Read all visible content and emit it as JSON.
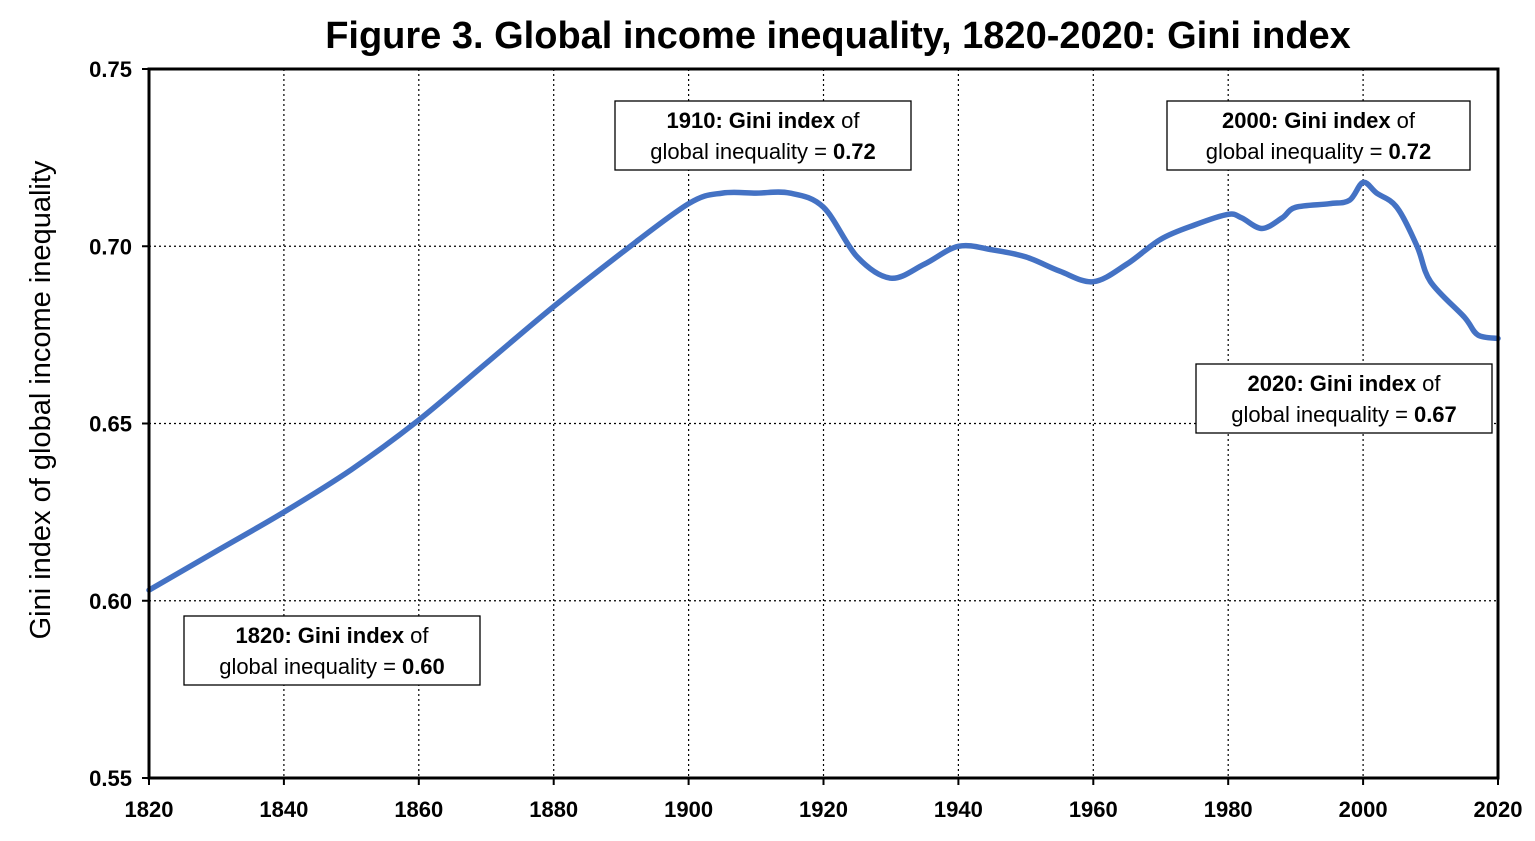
{
  "chart_data": {
    "type": "line",
    "title": "Figure 3. Global income inequality, 1820-2020: Gini index",
    "xlabel": "",
    "ylabel": "Gini index of global income inequality",
    "xlim": [
      1820,
      2020
    ],
    "ylim": [
      0.55,
      0.75
    ],
    "x_ticks": [
      "1820",
      "1840",
      "1860",
      "1880",
      "1900",
      "1920",
      "1940",
      "1960",
      "1980",
      "2000",
      "2020"
    ],
    "y_ticks": [
      "0.55",
      "0.60",
      "0.65",
      "0.70",
      "0.75"
    ],
    "grid": true,
    "series": [
      {
        "color": "#4472c4",
        "x": [
          1820,
          1830,
          1840,
          1850,
          1860,
          1870,
          1880,
          1890,
          1900,
          1905,
          1910,
          1915,
          1920,
          1925,
          1930,
          1935,
          1940,
          1945,
          1950,
          1955,
          1960,
          1965,
          1970,
          1975,
          1980,
          1982,
          1985,
          1988,
          1990,
          1995,
          1998,
          2000,
          2002,
          2005,
          2008,
          2010,
          2015,
          2017,
          2020
        ],
        "y": [
          0.603,
          0.614,
          0.625,
          0.637,
          0.651,
          0.667,
          0.683,
          0.698,
          0.712,
          0.715,
          0.715,
          0.715,
          0.711,
          0.697,
          0.691,
          0.695,
          0.7,
          0.699,
          0.697,
          0.693,
          0.69,
          0.695,
          0.702,
          0.706,
          0.709,
          0.708,
          0.705,
          0.708,
          0.711,
          0.712,
          0.713,
          0.718,
          0.715,
          0.711,
          0.7,
          0.69,
          0.68,
          0.675,
          0.674
        ]
      }
    ],
    "annotations": [
      {
        "year": "1910:",
        "bold": "Gini index",
        "text": "of",
        "line2": "global inequality =",
        "value": "0.72"
      },
      {
        "year": "2000:",
        "bold": "Gini index",
        "text": "of",
        "line2": "global inequality =",
        "value": "0.72"
      },
      {
        "year": "2020:",
        "bold": "Gini index",
        "text": "of",
        "line2": "global inequality =",
        "value": "0.67"
      },
      {
        "year": "1820:",
        "bold": "Gini index",
        "text": "of",
        "line2": "global inequality =",
        "value": "0.60"
      }
    ]
  }
}
